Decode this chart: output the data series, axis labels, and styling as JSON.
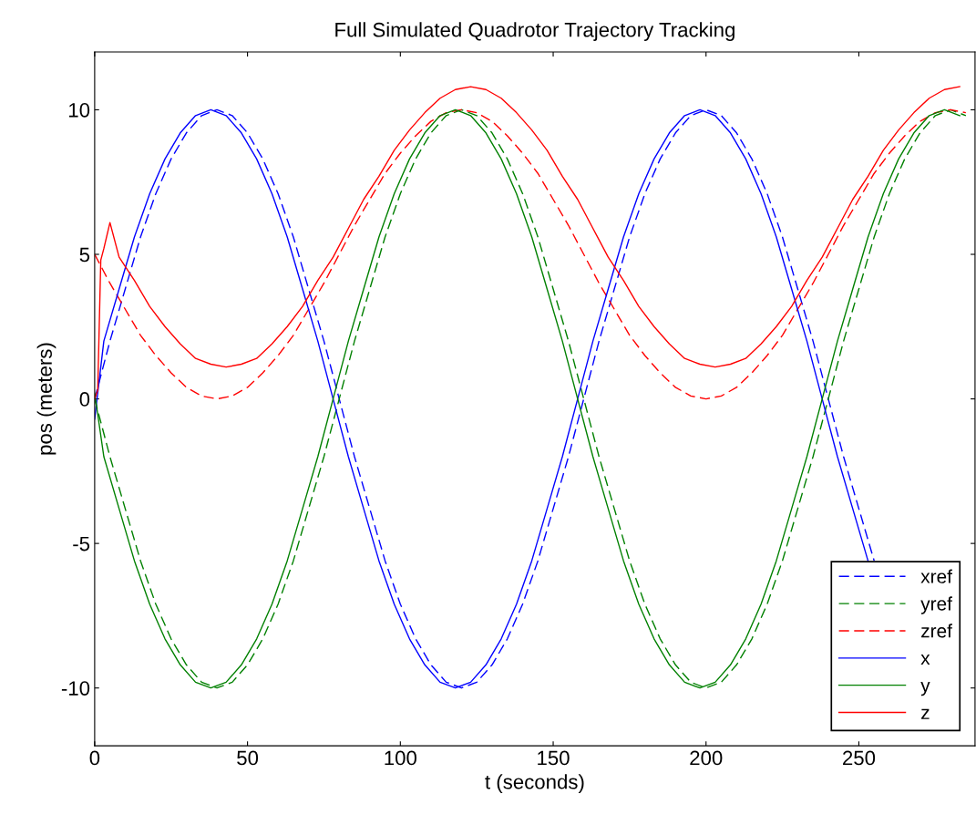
{
  "chart_data": {
    "type": "line",
    "title": "Full Simulated Quadrotor Trajectory Tracking",
    "xlabel": "t (seconds)",
    "ylabel": "pos (meters)",
    "x": [
      0,
      5,
      10,
      15,
      20,
      25,
      30,
      35,
      40,
      45,
      50,
      55,
      60,
      65,
      70,
      75,
      80,
      85,
      90,
      95,
      100,
      105,
      110,
      115,
      120,
      125,
      130,
      135,
      140,
      145,
      150,
      155,
      160,
      165,
      170,
      175,
      180,
      185,
      190,
      195,
      200,
      205,
      210,
      215,
      220,
      225,
      230,
      235,
      240,
      245,
      250,
      255,
      260,
      265,
      270,
      275,
      280,
      285
    ],
    "series": [
      {
        "name": "xref",
        "color": "#0000ff",
        "line_style": "dashed",
        "values": [
          0,
          2.0,
          3.8,
          5.6,
          7.1,
          8.3,
          9.2,
          9.8,
          10,
          9.8,
          9.2,
          8.3,
          7.1,
          5.6,
          3.8,
          2.0,
          0,
          -2.0,
          -3.8,
          -5.6,
          -7.1,
          -8.3,
          -9.2,
          -9.8,
          -10,
          -9.8,
          -9.2,
          -8.3,
          -7.1,
          -5.6,
          -3.8,
          -2.0,
          0,
          2.0,
          3.8,
          5.6,
          7.1,
          8.3,
          9.2,
          9.8,
          10,
          9.8,
          9.2,
          8.3,
          7.1,
          5.6,
          3.8,
          2.0,
          0,
          -2.0,
          -3.8,
          -5.6,
          null,
          null,
          null,
          null,
          null,
          null
        ]
      },
      {
        "name": "yref",
        "color": "#008000",
        "line_style": "dashed",
        "values": [
          0,
          -2.0,
          -3.8,
          -5.6,
          -7.1,
          -8.3,
          -9.2,
          -9.8,
          -10,
          -9.8,
          -9.2,
          -8.3,
          -7.1,
          -5.6,
          -3.8,
          -2.0,
          0,
          2.0,
          3.8,
          5.6,
          7.1,
          8.3,
          9.2,
          9.8,
          10,
          9.8,
          9.2,
          8.3,
          7.1,
          5.6,
          3.8,
          2.0,
          0,
          -2.0,
          -3.8,
          -5.6,
          -7.1,
          -8.3,
          -9.2,
          -9.8,
          -10,
          -9.8,
          -9.2,
          -8.3,
          -7.1,
          -5.6,
          -3.8,
          -2.0,
          0,
          2.0,
          3.8,
          5.6,
          7.1,
          8.3,
          9.2,
          9.8,
          10,
          9.8
        ]
      },
      {
        "name": "zref",
        "color": "#ff0000",
        "line_style": "dashed",
        "values": [
          5,
          4.0,
          3.1,
          2.2,
          1.5,
          0.9,
          0.4,
          0.1,
          0,
          0.1,
          0.4,
          0.9,
          1.5,
          2.2,
          3.1,
          4.0,
          5,
          6.0,
          6.9,
          7.8,
          8.5,
          9.1,
          9.6,
          9.9,
          10,
          9.9,
          9.6,
          9.1,
          8.5,
          7.8,
          6.9,
          6.0,
          5,
          4.0,
          3.1,
          2.2,
          1.5,
          0.9,
          0.4,
          0.1,
          0,
          0.1,
          0.4,
          0.9,
          1.5,
          2.2,
          3.1,
          4.0,
          5,
          6.0,
          6.9,
          7.8,
          8.5,
          9.1,
          9.6,
          9.9,
          10,
          9.9
        ]
      },
      {
        "name": "x",
        "color": "#0000ff",
        "line_style": "solid",
        "x": [
          0,
          3,
          8,
          13,
          18,
          23,
          28,
          33,
          38,
          43,
          48,
          53,
          58,
          63,
          68,
          73,
          78,
          83,
          88,
          93,
          98,
          103,
          108,
          113,
          118,
          123,
          128,
          133,
          138,
          143,
          148,
          153,
          158,
          163,
          168,
          173,
          178,
          183,
          188,
          193,
          198,
          203,
          208,
          213,
          218,
          223,
          228,
          233,
          238,
          243,
          248,
          253
        ],
        "values": [
          -0.7,
          2.0,
          3.8,
          5.6,
          7.1,
          8.3,
          9.2,
          9.8,
          10,
          9.8,
          9.2,
          8.3,
          7.1,
          5.6,
          3.8,
          2.0,
          0,
          -2.0,
          -3.8,
          -5.6,
          -7.1,
          -8.3,
          -9.2,
          -9.8,
          -10,
          -9.8,
          -9.2,
          -8.3,
          -7.1,
          -5.6,
          -3.8,
          -2.0,
          0,
          2.0,
          3.8,
          5.6,
          7.1,
          8.3,
          9.2,
          9.8,
          10,
          9.8,
          9.2,
          8.3,
          7.1,
          5.6,
          3.8,
          2.0,
          0,
          -2.0,
          -3.8,
          -5.6
        ]
      },
      {
        "name": "y",
        "color": "#008000",
        "line_style": "solid",
        "x": [
          0,
          3,
          8,
          13,
          18,
          23,
          28,
          33,
          38,
          43,
          48,
          53,
          58,
          63,
          68,
          73,
          78,
          83,
          88,
          93,
          98,
          103,
          108,
          113,
          118,
          123,
          128,
          133,
          138,
          143,
          148,
          153,
          158,
          163,
          168,
          173,
          178,
          183,
          188,
          193,
          198,
          203,
          208,
          213,
          218,
          223,
          228,
          233,
          238,
          243,
          248,
          253,
          258,
          263,
          268,
          273,
          278,
          283
        ],
        "values": [
          0.2,
          -2.0,
          -3.8,
          -5.6,
          -7.1,
          -8.3,
          -9.2,
          -9.8,
          -10,
          -9.8,
          -9.2,
          -8.3,
          -7.1,
          -5.6,
          -3.8,
          -2.0,
          0,
          2.0,
          3.8,
          5.6,
          7.1,
          8.3,
          9.2,
          9.8,
          10,
          9.8,
          9.2,
          8.3,
          7.1,
          5.6,
          3.8,
          2.0,
          0,
          -2.0,
          -3.8,
          -5.6,
          -7.1,
          -8.3,
          -9.2,
          -9.8,
          -10,
          -9.8,
          -9.2,
          -8.3,
          -7.1,
          -5.6,
          -3.8,
          -2.0,
          0,
          2.0,
          3.8,
          5.6,
          7.1,
          8.3,
          9.2,
          9.8,
          10,
          9.8
        ]
      },
      {
        "name": "z",
        "color": "#ff0000",
        "line_style": "solid",
        "x": [
          0,
          1,
          2,
          3,
          5,
          8,
          13,
          18,
          23,
          28,
          33,
          38,
          43,
          48,
          53,
          58,
          63,
          68,
          73,
          78,
          83,
          88,
          93,
          98,
          103,
          108,
          113,
          118,
          123,
          128,
          133,
          138,
          143,
          148,
          153,
          158,
          163,
          168,
          173,
          178,
          183,
          188,
          193,
          198,
          203,
          208,
          213,
          218,
          223,
          228,
          233,
          238,
          243,
          248,
          253,
          258,
          263,
          268,
          273,
          278,
          283
        ],
        "values": [
          0,
          0.3,
          4.8,
          5.2,
          6.1,
          4.9,
          4.1,
          3.2,
          2.5,
          1.9,
          1.4,
          1.2,
          1.1,
          1.2,
          1.4,
          1.9,
          2.5,
          3.2,
          4.1,
          4.9,
          5.9,
          6.9,
          7.7,
          8.6,
          9.3,
          9.9,
          10.4,
          10.7,
          10.8,
          10.7,
          10.4,
          9.9,
          9.3,
          8.6,
          7.7,
          6.9,
          5.9,
          4.9,
          4.1,
          3.2,
          2.5,
          1.9,
          1.4,
          1.2,
          1.1,
          1.2,
          1.4,
          1.9,
          2.5,
          3.2,
          4.1,
          4.9,
          5.9,
          6.9,
          7.7,
          8.6,
          9.3,
          9.9,
          10.4,
          10.7,
          10.8
        ]
      }
    ],
    "xlim": [
      0,
      288
    ],
    "ylim": [
      -12,
      12
    ],
    "xticks": [
      0,
      50,
      100,
      150,
      200,
      250
    ],
    "yticks": [
      -10,
      -5,
      0,
      5,
      10
    ],
    "grid": false,
    "legend": "bottom right"
  }
}
